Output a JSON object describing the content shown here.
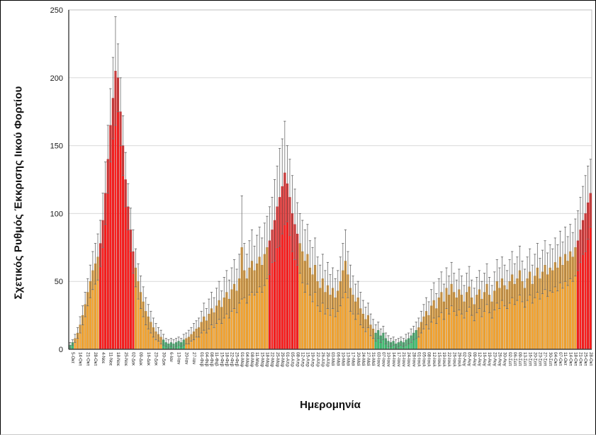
{
  "page": {
    "background": "#FFFFFF",
    "frame_border": "#000000"
  },
  "chart_data": {
    "type": "bar",
    "title": "",
    "xlabel": "Ημερομηνία",
    "ylabel": "Σχετικός Ρυθμός Έκκρισης Ιικού Φορτίου",
    "ylim": [
      0,
      250
    ],
    "yticks": [
      0,
      50,
      100,
      150,
      200,
      250
    ],
    "grid": true,
    "legend_position": "none",
    "error_bars": true,
    "colors": {
      "red": "#FB1D1D",
      "orange": "#F7A430",
      "green": "#3FBE70",
      "red_edge": "#B40000",
      "orange_edge": "#A87312",
      "green_edge": "#1F7A45",
      "error": "#6E6E6E",
      "grid": "#D9D9D9",
      "axis": "#404040",
      "plot_border": "#BFBFBF",
      "tick_text": "#1A1A1A"
    },
    "color_meaning": {
      "r": "high level (red)",
      "o": "medium level (orange)",
      "g": "low level (green)"
    },
    "bars_format": [
      "x_label (empty = unlabeled tick)",
      "value",
      "error_bar_top",
      "color_code r|o|g"
    ],
    "bars": [
      [
        "5-Οκτ",
        3,
        5,
        "g"
      ],
      [
        "",
        5,
        7,
        "g"
      ],
      [
        "",
        8,
        11,
        "o"
      ],
      [
        "14-Οκτ",
        12,
        16,
        "o"
      ],
      [
        "",
        18,
        24,
        "o"
      ],
      [
        "",
        25,
        32,
        "o"
      ],
      [
        "21-Οκτ",
        33,
        42,
        "o"
      ],
      [
        "",
        42,
        52,
        "o"
      ],
      [
        "",
        50,
        62,
        "o"
      ],
      [
        "28-Οκτ",
        58,
        72,
        "o"
      ],
      [
        "",
        63,
        78,
        "o"
      ],
      [
        "",
        68,
        85,
        "o"
      ],
      [
        "4-Νοε",
        78,
        95,
        "r"
      ],
      [
        "",
        95,
        115,
        "r"
      ],
      [
        "",
        115,
        138,
        "r"
      ],
      [
        "11-Νοε",
        140,
        165,
        "r"
      ],
      [
        "",
        165,
        192,
        "r"
      ],
      [
        "",
        185,
        215,
        "r"
      ],
      [
        "18-Νοε",
        205,
        245,
        "r"
      ],
      [
        "",
        200,
        225,
        "r"
      ],
      [
        "",
        175,
        200,
        "r"
      ],
      [
        "25-Νοε",
        150,
        172,
        "r"
      ],
      [
        "",
        125,
        145,
        "r"
      ],
      [
        "",
        105,
        122,
        "r"
      ],
      [
        "02-Δεκ",
        88,
        104,
        "r"
      ],
      [
        "",
        72,
        88,
        "r"
      ],
      [
        "",
        60,
        74,
        "o"
      ],
      [
        "09-Δεκ",
        50,
        63,
        "o"
      ],
      [
        "",
        42,
        54,
        "o"
      ],
      [
        "",
        35,
        46,
        "o"
      ],
      [
        "16-Δεκ",
        28,
        38,
        "o"
      ],
      [
        "",
        24,
        33,
        "o"
      ],
      [
        "",
        20,
        28,
        "o"
      ],
      [
        "23-Δεκ",
        16,
        23,
        "o"
      ],
      [
        "",
        13,
        19,
        "o"
      ],
      [
        "",
        11,
        16,
        "o"
      ],
      [
        "30-Δεκ",
        9,
        14,
        "o"
      ],
      [
        "",
        7,
        11,
        "g"
      ],
      [
        "",
        5,
        8,
        "g"
      ],
      [
        "6-Ιαν",
        4,
        7,
        "g"
      ],
      [
        "",
        5,
        8,
        "g"
      ],
      [
        "",
        4,
        7,
        "g"
      ],
      [
        "13-Ιαν",
        5,
        8,
        "g"
      ],
      [
        "",
        6,
        9,
        "g"
      ],
      [
        "",
        5,
        8,
        "g"
      ],
      [
        "20-Ιαν",
        7,
        11,
        "g"
      ],
      [
        "",
        8,
        12,
        "o"
      ],
      [
        "",
        9,
        14,
        "o"
      ],
      [
        "27-Ιαν",
        11,
        16,
        "o"
      ],
      [
        "",
        13,
        19,
        "o"
      ],
      [
        "",
        15,
        21,
        "o"
      ],
      [
        "01-Φεβ",
        16,
        23,
        "o"
      ],
      [
        "",
        20,
        28,
        "o"
      ],
      [
        "04-Φεβ",
        24,
        34,
        "o"
      ],
      [
        "",
        21,
        30,
        "o"
      ],
      [
        "08-Φεβ",
        26,
        37,
        "o"
      ],
      [
        "",
        30,
        42,
        "o"
      ],
      [
        "11-Φεβ",
        27,
        38,
        "o"
      ],
      [
        "",
        32,
        45,
        "o"
      ],
      [
        "15-Φεβ",
        36,
        50,
        "o"
      ],
      [
        "",
        31,
        43,
        "o"
      ],
      [
        "18-Φεβ",
        38,
        53,
        "o"
      ],
      [
        "",
        42,
        58,
        "o"
      ],
      [
        "22-Φεβ",
        37,
        51,
        "o"
      ],
      [
        "",
        44,
        60,
        "o"
      ],
      [
        "25-Φεβ",
        48,
        66,
        "o"
      ],
      [
        "",
        43,
        59,
        "o"
      ],
      [
        "01-Μαρ",
        52,
        70,
        "o"
      ],
      [
        "",
        75,
        113,
        "o"
      ],
      [
        "04-Μαρ",
        58,
        78,
        "o"
      ],
      [
        "",
        52,
        70,
        "o"
      ],
      [
        "08-Μαρ",
        60,
        80,
        "o"
      ],
      [
        "",
        65,
        88,
        "o"
      ],
      [
        "11-Μαρ",
        58,
        76,
        "o"
      ],
      [
        "",
        63,
        84,
        "o"
      ],
      [
        "15-Μαρ",
        68,
        90,
        "o"
      ],
      [
        "",
        62,
        82,
        "o"
      ],
      [
        "18-Μαρ",
        70,
        93,
        "o"
      ],
      [
        "",
        75,
        98,
        "o"
      ],
      [
        "22-Μαρ",
        80,
        105,
        "r"
      ],
      [
        "",
        88,
        112,
        "r"
      ],
      [
        "25-Μαρ",
        95,
        125,
        "r"
      ],
      [
        "",
        105,
        135,
        "r"
      ],
      [
        "29-Μαρ",
        112,
        148,
        "r"
      ],
      [
        "",
        120,
        155,
        "r"
      ],
      [
        "01-Απρ",
        130,
        168,
        "r"
      ],
      [
        "",
        122,
        150,
        "r"
      ],
      [
        "05-Απρ",
        112,
        140,
        "r"
      ],
      [
        "",
        100,
        128,
        "r"
      ],
      [
        "08-Απρ",
        92,
        118,
        "r"
      ],
      [
        "",
        85,
        108,
        "r"
      ],
      [
        "12-Απρ",
        78,
        100,
        "o"
      ],
      [
        "",
        72,
        95,
        "o"
      ],
      [
        "15-Απρ",
        65,
        88,
        "o"
      ],
      [
        "",
        70,
        92,
        "o"
      ],
      [
        "19-Απρ",
        60,
        80,
        "o"
      ],
      [
        "",
        55,
        75,
        "o"
      ],
      [
        "22-Απρ",
        62,
        82,
        "o"
      ],
      [
        "",
        50,
        68,
        "o"
      ],
      [
        "26-Απρ",
        45,
        62,
        "o"
      ],
      [
        "",
        52,
        70,
        "o"
      ],
      [
        "29-Απρ",
        42,
        58,
        "o"
      ],
      [
        "",
        47,
        64,
        "o"
      ],
      [
        "03-Μαϊ",
        40,
        55,
        "o"
      ],
      [
        "",
        45,
        60,
        "o"
      ],
      [
        "06-Μαϊ",
        38,
        52,
        "o"
      ],
      [
        "",
        43,
        58,
        "o"
      ],
      [
        "10-Μαϊ",
        50,
        68,
        "o"
      ],
      [
        "",
        58,
        78,
        "o"
      ],
      [
        "13-Μαϊ",
        65,
        88,
        "o"
      ],
      [
        "",
        55,
        72,
        "o"
      ],
      [
        "17-Μαϊ",
        45,
        62,
        "o"
      ],
      [
        "",
        40,
        54,
        "o"
      ],
      [
        "20-Μαϊ",
        35,
        48,
        "o"
      ],
      [
        "",
        38,
        50,
        "o"
      ],
      [
        "24-Μαϊ",
        30,
        42,
        "o"
      ],
      [
        "",
        26,
        36,
        "o"
      ],
      [
        "27-Μαϊ",
        22,
        31,
        "o"
      ],
      [
        "",
        25,
        34,
        "o"
      ],
      [
        "31-Μαϊ",
        18,
        26,
        "o"
      ],
      [
        "",
        15,
        22,
        "o"
      ],
      [
        "03-Ιουν",
        12,
        18,
        "g"
      ],
      [
        "",
        14,
        20,
        "g"
      ],
      [
        "07-Ιουν",
        10,
        15,
        "g"
      ],
      [
        "",
        12,
        17,
        "g"
      ],
      [
        "10-Ιουν",
        8,
        12,
        "g"
      ],
      [
        "",
        6,
        10,
        "g"
      ],
      [
        "14-Ιουν",
        5,
        8,
        "g"
      ],
      [
        "",
        6,
        9,
        "g"
      ],
      [
        "17-Ιουν",
        4,
        7,
        "g"
      ],
      [
        "",
        5,
        8,
        "g"
      ],
      [
        "21-Ιουν",
        6,
        9,
        "g"
      ],
      [
        "",
        5,
        8,
        "g"
      ],
      [
        "24-Ιουν",
        7,
        11,
        "g"
      ],
      [
        "",
        8,
        12,
        "g"
      ],
      [
        "28-Ιουν",
        10,
        15,
        "g"
      ],
      [
        "",
        12,
        17,
        "g"
      ],
      [
        "01-Ιουλ",
        14,
        20,
        "g"
      ],
      [
        "",
        16,
        23,
        "o"
      ],
      [
        "05-Ιουλ",
        20,
        28,
        "o"
      ],
      [
        "",
        24,
        33,
        "o"
      ],
      [
        "08-Ιουλ",
        28,
        38,
        "o"
      ],
      [
        "",
        25,
        35,
        "o"
      ],
      [
        "12-Ιουλ",
        32,
        44,
        "o"
      ],
      [
        "",
        36,
        49,
        "o"
      ],
      [
        "15-Ιουλ",
        30,
        41,
        "o"
      ],
      [
        "",
        38,
        52,
        "o"
      ],
      [
        "19-Ιουλ",
        42,
        57,
        "o"
      ],
      [
        "",
        35,
        48,
        "o"
      ],
      [
        "22-Ιουλ",
        45,
        60,
        "o"
      ],
      [
        "",
        40,
        54,
        "o"
      ],
      [
        "26-Ιουλ",
        48,
        64,
        "o"
      ],
      [
        "",
        42,
        56,
        "o"
      ],
      [
        "29-Ιουλ",
        38,
        51,
        "o"
      ],
      [
        "",
        44,
        59,
        "o"
      ],
      [
        "02-Αυγ",
        40,
        54,
        "o"
      ],
      [
        "",
        35,
        47,
        "o"
      ],
      [
        "05-Αυγ",
        42,
        56,
        "o"
      ],
      [
        "",
        46,
        61,
        "o"
      ],
      [
        "09-Αυγ",
        38,
        51,
        "o"
      ],
      [
        "",
        33,
        45,
        "o"
      ],
      [
        "12-Αυγ",
        40,
        53,
        "o"
      ],
      [
        "",
        44,
        58,
        "o"
      ],
      [
        "16-Αυγ",
        37,
        50,
        "o"
      ],
      [
        "",
        42,
        56,
        "o"
      ],
      [
        "19-Αυγ",
        48,
        63,
        "o"
      ],
      [
        "",
        40,
        53,
        "o"
      ],
      [
        "23-Αυγ",
        35,
        47,
        "o"
      ],
      [
        "",
        43,
        57,
        "o"
      ],
      [
        "26-Αυγ",
        50,
        66,
        "o"
      ],
      [
        "",
        45,
        60,
        "o"
      ],
      [
        "30-Αυγ",
        52,
        68,
        "o"
      ],
      [
        "",
        47,
        62,
        "o"
      ],
      [
        "02-Σεπ",
        44,
        58,
        "o"
      ],
      [
        "",
        50,
        66,
        "o"
      ],
      [
        "06-Σεπ",
        55,
        72,
        "o"
      ],
      [
        "",
        48,
        63,
        "o"
      ],
      [
        "09-Σεπ",
        52,
        68,
        "o"
      ],
      [
        "",
        58,
        76,
        "o"
      ],
      [
        "13-Σεπ",
        50,
        65,
        "o"
      ],
      [
        "",
        45,
        59,
        "o"
      ],
      [
        "16-Σεπ",
        52,
        68,
        "o"
      ],
      [
        "",
        57,
        74,
        "o"
      ],
      [
        "20-Σεπ",
        48,
        62,
        "o"
      ],
      [
        "",
        54,
        70,
        "o"
      ],
      [
        "23-Σεπ",
        60,
        78,
        "o"
      ],
      [
        "",
        52,
        67,
        "o"
      ],
      [
        "27-Σεπ",
        57,
        73,
        "o"
      ],
      [
        "",
        62,
        80,
        "o"
      ],
      [
        "30-Σεπ",
        55,
        71,
        "o"
      ],
      [
        "",
        60,
        77,
        "o"
      ],
      [
        "04-Οκτ",
        58,
        74,
        "o"
      ],
      [
        "",
        64,
        82,
        "o"
      ],
      [
        "07-Οκτ",
        60,
        77,
        "o"
      ],
      [
        "",
        68,
        87,
        "o"
      ],
      [
        "11-Οκτ",
        62,
        79,
        "o"
      ],
      [
        "",
        70,
        90,
        "o"
      ],
      [
        "14-Οκτ",
        65,
        83,
        "o"
      ],
      [
        "",
        72,
        92,
        "o"
      ],
      [
        "18-Οκτ",
        68,
        86,
        "o"
      ],
      [
        "",
        75,
        96,
        "o"
      ],
      [
        "21-Οκτ",
        80,
        102,
        "r"
      ],
      [
        "",
        88,
        112,
        "r"
      ],
      [
        "25-Οκτ",
        95,
        120,
        "r"
      ],
      [
        "",
        100,
        128,
        "r"
      ],
      [
        "28-Οκτ",
        108,
        135,
        "r"
      ],
      [
        "",
        115,
        140,
        "r"
      ]
    ]
  }
}
